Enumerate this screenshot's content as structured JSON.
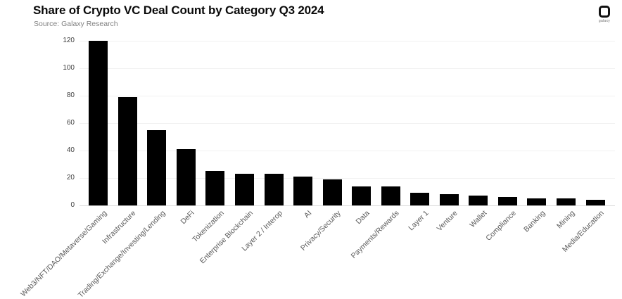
{
  "header": {
    "title": "Share of Crypto VC Deal Count by Category Q3 2024",
    "source": "Source: Galaxy Research",
    "logo_text": "galaxy"
  },
  "chart_data": {
    "type": "bar",
    "title": "Share of Crypto VC Deal Count by Category Q3 2024",
    "subtitle": "Source: Galaxy Research",
    "categories": [
      "Web3/NFT/DAO/Metaverse/Gaming",
      "Infrastructure",
      "Trading/Exchange/Investing/Lending",
      "DeFi",
      "Tokenization",
      "Enterprise Blockchain",
      "Layer 2 / Interop",
      "AI",
      "Privacy/Security",
      "Data",
      "Payments/Rewards",
      "Layer 1",
      "Venture",
      "Wallet",
      "Compliance",
      "Banking",
      "Mining",
      "Media/Education"
    ],
    "values": [
      120,
      79,
      55,
      41,
      25,
      23,
      23,
      21,
      19,
      14,
      14,
      9,
      8,
      7,
      6,
      5,
      5,
      4
    ],
    "xlabel": "",
    "ylabel": "",
    "ylim": [
      0,
      120
    ],
    "yticks": [
      0,
      20,
      40,
      60,
      80,
      100,
      120
    ],
    "grid": "horizontal",
    "legend": "none",
    "bar_color": "#000000",
    "gridline_color": "#f1f1f1",
    "baseline_color": "#d8d8d8",
    "tick_label_color": "#3d3d3d",
    "category_label_color": "#595959",
    "title_color": "#0a0a0a",
    "source_color": "#818181"
  }
}
